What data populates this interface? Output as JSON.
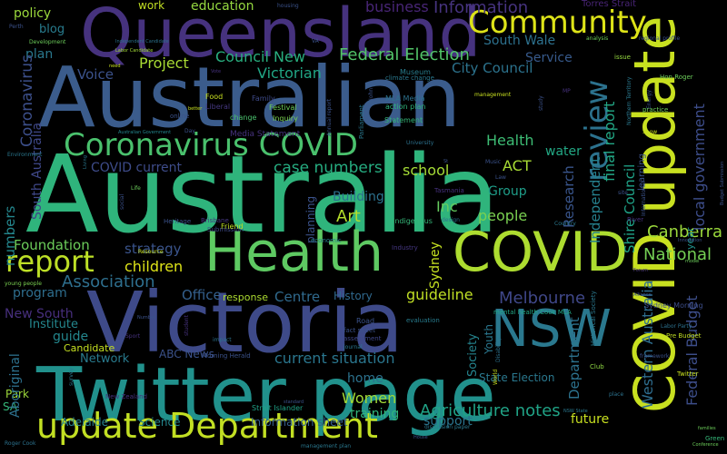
{
  "words": [
    {
      "text": "Australia",
      "color": "#2fb47c"
    },
    {
      "text": "Australian",
      "color": "#3b5c8c"
    },
    {
      "text": "Queensland",
      "color": "#46327e"
    },
    {
      "text": "Victoria",
      "color": "#3e4a89"
    },
    {
      "text": "Twitter page",
      "color": "#21918c"
    },
    {
      "text": "Health",
      "color": "#5ec962"
    },
    {
      "text": "COVID",
      "color": "#addc30"
    },
    {
      "text": "COVID update",
      "color": "#c8e020"
    },
    {
      "text": "NSW",
      "color": "#2a788e"
    },
    {
      "text": "update Department",
      "color": "#c2df23"
    },
    {
      "text": "Coronavirus COVID",
      "color": "#4ac16d"
    },
    {
      "text": "Community",
      "color": "#dde318"
    },
    {
      "text": "report",
      "color": "#bddf26"
    },
    {
      "text": "review",
      "color": "#2c728e"
    },
    {
      "text": "Art",
      "color": "#b5de2b"
    },
    {
      "text": "Canberra",
      "color": "#9bd93c"
    },
    {
      "text": "Melbourne",
      "color": "#3f4788"
    },
    {
      "text": "Information",
      "color": "#46337f"
    },
    {
      "text": "Federal Election",
      "color": "#52c569"
    },
    {
      "text": "National",
      "color": "#75d054"
    },
    {
      "text": "Agriculture notes",
      "color": "#20a386"
    },
    {
      "text": "Women",
      "color": "#a2da37"
    },
    {
      "text": "children",
      "color": "#dde318"
    },
    {
      "text": "Foundation",
      "color": "#6ccd5a"
    },
    {
      "text": "strategy",
      "color": "#3a548c"
    },
    {
      "text": "Association",
      "color": "#2e6f8e"
    },
    {
      "text": "Office",
      "color": "#34608d"
    },
    {
      "text": "Centre",
      "color": "#306a8e"
    },
    {
      "text": "guideline",
      "color": "#c0df25"
    },
    {
      "text": "people",
      "color": "#7ad151"
    },
    {
      "text": "business",
      "color": "#482576"
    },
    {
      "text": "Council New",
      "color": "#29af7f"
    },
    {
      "text": "South Wale",
      "color": "#2d718e"
    },
    {
      "text": "Service",
      "color": "#375a8c"
    },
    {
      "text": "City Council",
      "color": "#2c738e"
    },
    {
      "text": "Victorian",
      "color": "#21a685"
    },
    {
      "text": "Project",
      "color": "#a8db34"
    },
    {
      "text": "Voice",
      "color": "#3b528b"
    },
    {
      "text": "blog",
      "color": "#287c8e"
    },
    {
      "text": "plan",
      "color": "#2a788e"
    },
    {
      "text": "policy",
      "color": "#9bd93c"
    },
    {
      "text": "education",
      "color": "#95d840"
    },
    {
      "text": "work",
      "color": "#c2df23"
    },
    {
      "text": "Coronavirus",
      "color": "#3c4f8a"
    },
    {
      "text": "COVID current",
      "color": "#3e4c8a"
    },
    {
      "text": "case numbers",
      "color": "#26ad81"
    },
    {
      "text": "school",
      "color": "#a5db36"
    },
    {
      "text": "Health",
      "color": "#3dbc74"
    },
    {
      "text": "ACT",
      "color": "#a8db34"
    },
    {
      "text": "water",
      "color": "#22a884"
    },
    {
      "text": "Research",
      "color": "#39558c"
    },
    {
      "text": "Independent",
      "color": "#26818e"
    },
    {
      "text": "Inc",
      "color": "#65cb5e"
    },
    {
      "text": "Building",
      "color": "#2c718e"
    },
    {
      "text": "planning",
      "color": "#3b528b"
    },
    {
      "text": "Group",
      "color": "#1f9e89"
    },
    {
      "text": "Sydney",
      "color": "#c5e021"
    },
    {
      "text": "History",
      "color": "#30698e"
    },
    {
      "text": "current situation",
      "color": "#2a768e"
    },
    {
      "text": "home",
      "color": "#2c728e"
    },
    {
      "text": "training",
      "color": "#31b57b"
    },
    {
      "text": "support",
      "color": "#2b748e"
    },
    {
      "text": "future",
      "color": "#c8e020"
    },
    {
      "text": "New South",
      "color": "#472f7d"
    },
    {
      "text": "Institute",
      "color": "#24878e"
    },
    {
      "text": "guide",
      "color": "#24878e"
    },
    {
      "text": "Candidate",
      "color": "#c5e021"
    },
    {
      "text": "program",
      "color": "#2e6e8e"
    },
    {
      "text": "Network",
      "color": "#297b8e"
    },
    {
      "text": "ABC News",
      "color": "#3b528b"
    },
    {
      "text": "Park",
      "color": "#9dd93b"
    },
    {
      "text": "SA",
      "color": "#35b779"
    },
    {
      "text": "Adelaide",
      "color": "#27808e"
    },
    {
      "text": "Science",
      "color": "#24878e"
    },
    {
      "text": "Information sheet",
      "color": "#355f8d"
    },
    {
      "text": "Aboriginal",
      "color": "#2d718e"
    },
    {
      "text": "Western Australia",
      "color": "#2e6d8e"
    },
    {
      "text": "final report",
      "color": "#22a785"
    },
    {
      "text": "Department",
      "color": "#2c728e"
    },
    {
      "text": "local government",
      "color": "#3d4d8a"
    },
    {
      "text": "Shire Council",
      "color": "#1fa287"
    },
    {
      "text": "Federal Budget",
      "color": "#3d4e8a"
    },
    {
      "text": "State Election",
      "color": "#2a788e"
    },
    {
      "text": "numbers",
      "color": "#24878e"
    },
    {
      "text": "South Australia",
      "color": "#3f4889"
    },
    {
      "text": "Youth",
      "color": "#2a778e"
    },
    {
      "text": "Society",
      "color": "#25848e"
    },
    {
      "text": "year",
      "color": "#21918c"
    },
    {
      "text": "learning",
      "color": "#3b528b"
    },
    {
      "text": "Statement",
      "color": "#35b779"
    },
    {
      "text": "Museum",
      "color": "#287d8e"
    },
    {
      "text": "Parliament",
      "color": "#2a788e"
    },
    {
      "text": "action plan",
      "color": "#2fb47c"
    },
    {
      "text": "Inquiry",
      "color": "#7ad151"
    },
    {
      "text": "Festival",
      "color": "#6ccd5a"
    },
    {
      "text": "Food",
      "color": "#c8e020"
    },
    {
      "text": "Liberal",
      "color": "#453781"
    },
    {
      "text": "Family",
      "color": "#3e4a89"
    },
    {
      "text": "change",
      "color": "#4ac16d"
    },
    {
      "text": "online",
      "color": "#3b528b"
    },
    {
      "text": "Media Statement",
      "color": "#46327e"
    },
    {
      "text": "MLA Media",
      "color": "#2c728e"
    },
    {
      "text": "climate change",
      "color": "#2a788e"
    },
    {
      "text": "Torres Strait",
      "color": "#482475"
    },
    {
      "text": "Hon Roger",
      "color": "#6ccd5a"
    },
    {
      "text": "issue",
      "color": "#95d840"
    },
    {
      "text": "Brisbane",
      "color": "#453781"
    },
    {
      "text": "Submission",
      "color": "#3e4a89"
    },
    {
      "text": "Tasmania",
      "color": "#46327e"
    },
    {
      "text": "Indigenous",
      "color": "#35b779"
    },
    {
      "text": "Friend",
      "color": "#bddf26"
    },
    {
      "text": "Heritage",
      "color": "#3b528b"
    },
    {
      "text": "response",
      "color": "#addc30"
    },
    {
      "text": "Industry",
      "color": "#453781"
    },
    {
      "text": "economic",
      "color": "#26818e"
    },
    {
      "text": "Road",
      "color": "#3b528b"
    },
    {
      "text": "evaluation",
      "color": "#287c8e"
    },
    {
      "text": "assessment",
      "color": "#3f4788"
    },
    {
      "text": "mental health Cook MLA",
      "color": "#22a785"
    },
    {
      "text": "Sydney Morning",
      "color": "#3d4e8a"
    },
    {
      "text": "Pre Budget",
      "color": "#c2df23"
    },
    {
      "text": "Labor Party",
      "color": "#2c718e"
    },
    {
      "text": "Historical Society",
      "color": "#2a788e"
    },
    {
      "text": "Twitter",
      "color": "#c8e020"
    },
    {
      "text": "Club",
      "color": "#8fd744"
    },
    {
      "text": "Morning Herald",
      "color": "#3b528b"
    },
    {
      "text": "Strait Islander",
      "color": "#1fa287"
    },
    {
      "text": "New Zealand",
      "color": "#46327e"
    },
    {
      "text": "Labor Candidate",
      "color": "#a2da37"
    },
    {
      "text": "Independent Candidate",
      "color": "#2c728e"
    },
    {
      "text": "Development",
      "color": "#6ccd5a"
    },
    {
      "text": "Perth",
      "color": "#3b528b"
    },
    {
      "text": "young people",
      "color": "#7ad151"
    },
    {
      "text": "Australian Government",
      "color": "#24878e"
    },
    {
      "text": "regional profile",
      "color": "#3b528b"
    },
    {
      "text": "analysis",
      "color": "#6ccd5a"
    },
    {
      "text": "Energy",
      "color": "#3b528b"
    },
    {
      "text": "Green",
      "color": "#35b779"
    },
    {
      "text": "Environment",
      "color": "#2a788e"
    },
    {
      "text": "Disability",
      "color": "#2c728e"
    },
    {
      "text": "Conference",
      "color": "#6ccd5a"
    },
    {
      "text": "discussion paper",
      "color": "#2a788e"
    },
    {
      "text": "Roger Cook",
      "color": "#2c728e"
    },
    {
      "text": "Law",
      "color": "#3b528b"
    },
    {
      "text": "Music",
      "color": "#3b528b"
    },
    {
      "text": "Sport",
      "color": "#46327e"
    },
    {
      "text": "Northern Territory",
      "color": "#2a788e"
    },
    {
      "text": "International",
      "color": "#3b528b"
    },
    {
      "text": "Budget Submission",
      "color": "#3b528b"
    },
    {
      "text": "Vote",
      "color": "#46327e"
    },
    {
      "text": "better",
      "color": "#c8e020"
    },
    {
      "text": "need",
      "color": "#c8e020"
    },
    {
      "text": "Day",
      "color": "#3b528b"
    },
    {
      "text": "management",
      "color": "#c8e020"
    },
    {
      "text": "journal",
      "color": "#2a788e"
    },
    {
      "text": "social",
      "color": "#3b528b"
    },
    {
      "text": "Life",
      "color": "#6ccd5a"
    },
    {
      "text": "design",
      "color": "#2c728e"
    },
    {
      "text": "River",
      "color": "#46327e"
    },
    {
      "text": "Country",
      "color": "#2a788e"
    },
    {
      "text": "housing",
      "color": "#3b528b"
    },
    {
      "text": "University",
      "color": "#2c728e"
    },
    {
      "text": "Annual report",
      "color": "#3b528b"
    },
    {
      "text": "Show",
      "color": "#c8e020"
    },
    {
      "text": "John",
      "color": "#3b528b"
    },
    {
      "text": "practice",
      "color": "#6ccd5a"
    },
    {
      "text": "framework",
      "color": "#3b528b"
    },
    {
      "text": "World",
      "color": "#c8e020"
    },
    {
      "text": "standard",
      "color": "#3b528b"
    },
    {
      "text": "survey",
      "color": "#2a788e"
    },
    {
      "text": "Number",
      "color": "#3b528b"
    },
    {
      "text": "student",
      "color": "#46327e"
    },
    {
      "text": "impact",
      "color": "#2c728e"
    },
    {
      "text": "Resource",
      "color": "#c8e020"
    },
    {
      "text": "fact sheet",
      "color": "#3b528b"
    },
    {
      "text": "management plan",
      "color": "#2a788e"
    },
    {
      "text": "site",
      "color": "#3b528b"
    },
    {
      "text": "study",
      "color": "#3b528b"
    },
    {
      "text": "Forum",
      "color": "#46327e"
    },
    {
      "text": "model",
      "color": "#6ccd5a"
    },
    {
      "text": "place",
      "color": "#2c728e"
    },
    {
      "text": "Alliance",
      "color": "#3b528b"
    },
    {
      "text": "families",
      "color": "#6ccd5a"
    },
    {
      "text": "NSW State",
      "color": "#2a788e"
    },
    {
      "text": "Innovation",
      "color": "#3b528b"
    },
    {
      "text": "House",
      "color": "#3b528b"
    },
    {
      "text": "Living",
      "color": "#2a788e"
    },
    {
      "text": "St",
      "color": "#3b528b"
    },
    {
      "text": "MP",
      "color": "#46327e"
    },
    {
      "text": "VA",
      "color": "#3b528b"
    }
  ]
}
